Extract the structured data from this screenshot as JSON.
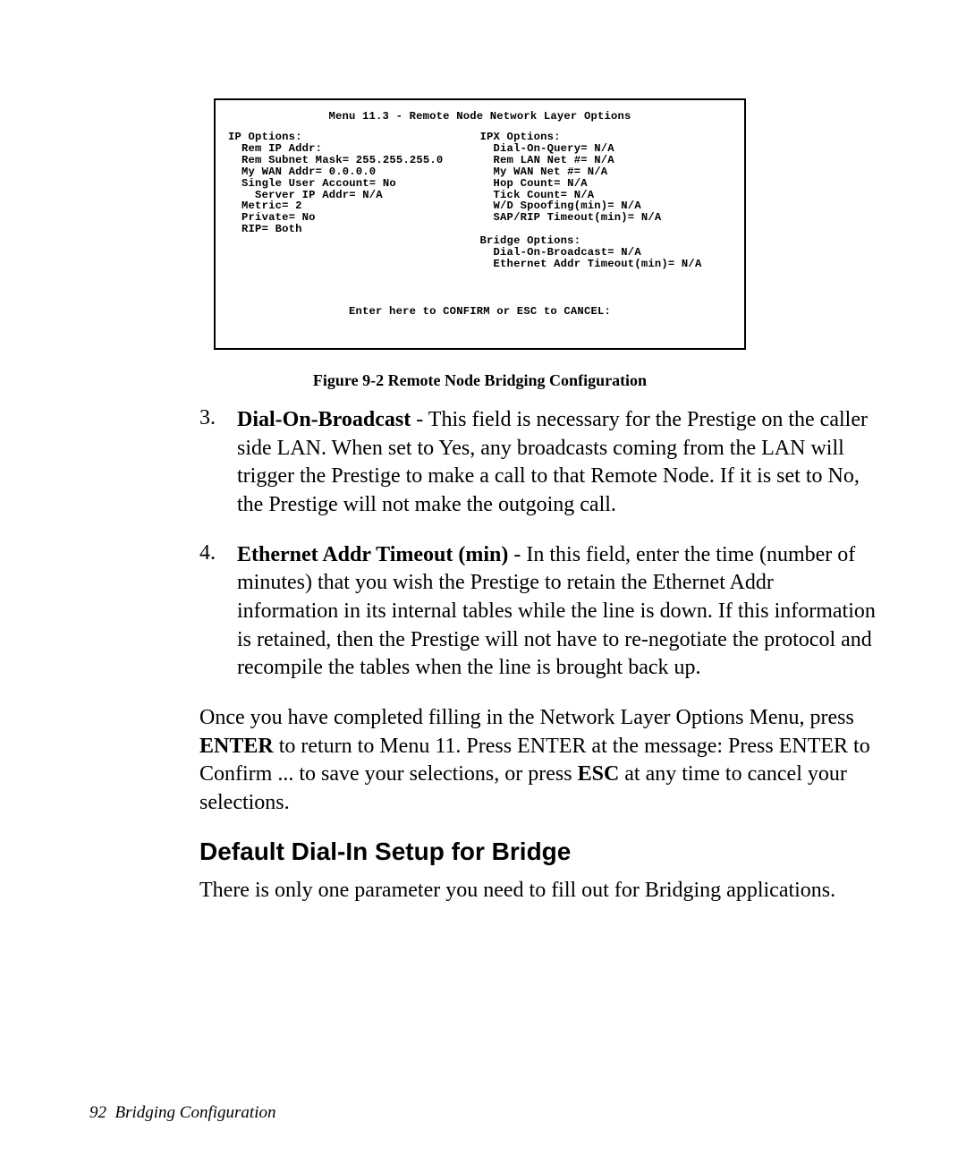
{
  "terminal": {
    "title": "Menu 11.3 - Remote Node Network Layer Options",
    "left": "IP Options:\n  Rem IP Addr:\n  Rem Subnet Mask= 255.255.255.0\n  My WAN Addr= 0.0.0.0\n  Single User Account= No\n    Server IP Addr= N/A\n  Metric= 2\n  Private= No\n  RIP= Both",
    "right": "IPX Options:\n  Dial-On-Query= N/A\n  Rem LAN Net #= N/A\n  My WAN Net #= N/A\n  Hop Count= N/A\n  Tick Count= N/A\n  W/D Spoofing(min)= N/A\n  SAP/RIP Timeout(min)= N/A\n\nBridge Options:\n  Dial-On-Broadcast= N/A\n  Ethernet Addr Timeout(min)= N/A",
    "confirm": "Enter here to CONFIRM or ESC to CANCEL:"
  },
  "figure_caption": "Figure 9-2 Remote Node Bridging Configuration",
  "item3": {
    "num": "3.",
    "bold": "Dial-On-Broadcast",
    "sep": " -  ",
    "text": "This field is necessary for the Prestige on the caller side LAN. When set to Yes, any broadcasts coming from the LAN will trigger the Prestige to make a call to that Remote Node. If it is set to No, the Prestige will not make the outgoing call."
  },
  "item4": {
    "num": "4.",
    "bold": "Ethernet Addr Timeout (min)",
    "sep": " -  ",
    "text": "In this field, enter the time (number of minutes) that you wish the Prestige to retain the Ethernet Addr information in its internal tables while the line is down. If this information is retained, then the Prestige will not have to re-negotiate the protocol and recompile the tables when the line is brought back up."
  },
  "para": {
    "p1a": "Once you have completed filling in the Network Layer Options Menu, press ",
    "p1b": "ENTER",
    "p1c": " to return to Menu 11. Press ENTER at the message: Press ENTER to Confirm ... to save your selections, or press ",
    "p1d": "ESC",
    "p1e": " at any time to cancel your selections."
  },
  "heading": "Default Dial-In Setup for Bridge",
  "para2": "There is only one parameter you need to fill out for Bridging applications.",
  "footer": {
    "page": "92",
    "title": "Bridging Configuration"
  }
}
